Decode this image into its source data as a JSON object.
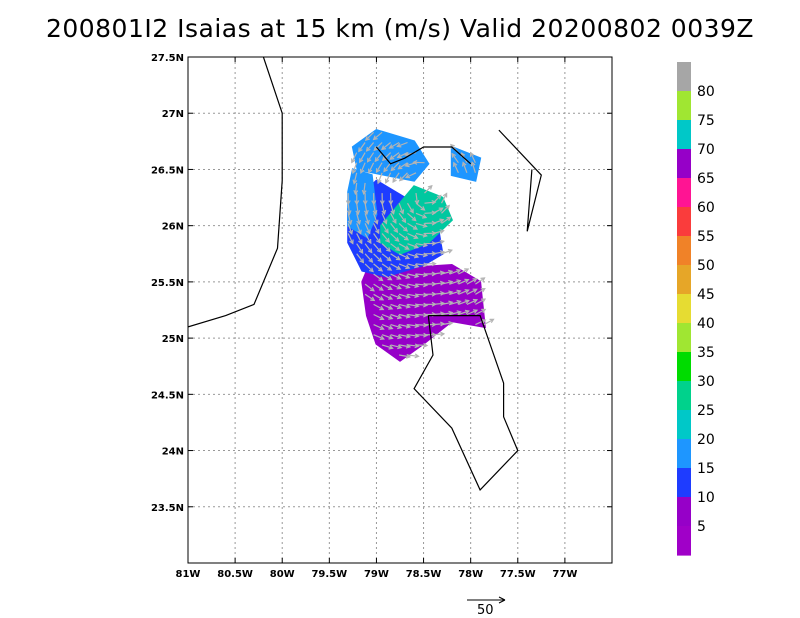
{
  "title": "200801I2 Isaias at 15 km (m/s) Valid 20200802 0039Z",
  "chart_data": {
    "type": "heatmap",
    "subtype": "doppler wind speed with wind vectors",
    "title": "200801I2 Isaias at 15 km (m/s) Valid 20200802 0039Z",
    "xlim": [
      -81.0,
      -76.5
    ],
    "ylim": [
      23.0,
      27.5
    ],
    "x_ticks": [
      -81.0,
      -80.5,
      -80.0,
      -79.5,
      -79.0,
      -78.5,
      -78.0,
      -77.5,
      -77.0
    ],
    "x_tick_labels": [
      "81W",
      "80.5W",
      "80W",
      "79.5W",
      "79W",
      "78.5W",
      "78W",
      "77.5W",
      "77W"
    ],
    "y_ticks": [
      27.5,
      27.0,
      26.5,
      26.0,
      25.5,
      25.0,
      24.5,
      24.0,
      23.5
    ],
    "y_tick_labels": [
      "27.5N",
      "27N",
      "26.5N",
      "26N",
      "25.5N",
      "25N",
      "24.5N",
      "24N",
      "23.5N"
    ],
    "grid": true,
    "colorbar": {
      "placement": "right",
      "labels": [
        "80",
        "75",
        "70",
        "65",
        "60",
        "55",
        "50",
        "45",
        "40",
        "35",
        "30",
        "25",
        "20",
        "15",
        "10",
        "5"
      ],
      "colors_top_to_bottom": [
        "#a6a6a6",
        "#a0e632",
        "#00c8c8",
        "#9600c8",
        "#ff1493",
        "#fa3c3c",
        "#f08228",
        "#e6a628",
        "#e6dc32",
        "#a0e632",
        "#00dc00",
        "#00d28c",
        "#00c8c8",
        "#1e96ff",
        "#1e3cff",
        "#9600c8",
        "#a000c8"
      ]
    },
    "reference_vector_label": "50",
    "regions": [
      {
        "name": "strong",
        "color": "#9600c8",
        "polygon": [
          [
            -79.1,
            25.6
          ],
          [
            -78.2,
            25.65
          ],
          [
            -77.9,
            25.5
          ],
          [
            -77.85,
            25.1
          ],
          [
            -78.2,
            25.15
          ],
          [
            -78.5,
            24.95
          ],
          [
            -78.75,
            24.8
          ],
          [
            -79.0,
            24.95
          ],
          [
            -79.1,
            25.2
          ],
          [
            -79.15,
            25.5
          ]
        ]
      },
      {
        "name": "mid",
        "color": "#1e3cff",
        "polygon": [
          [
            -79.3,
            26.15
          ],
          [
            -79.0,
            26.4
          ],
          [
            -78.6,
            26.2
          ],
          [
            -78.35,
            26.0
          ],
          [
            -78.3,
            25.75
          ],
          [
            -78.5,
            25.65
          ],
          [
            -78.9,
            25.55
          ],
          [
            -79.15,
            25.6
          ],
          [
            -79.3,
            25.85
          ]
        ]
      },
      {
        "name": "core",
        "color": "#00c8a0",
        "polygon": [
          [
            -78.95,
            26.0
          ],
          [
            -78.6,
            26.35
          ],
          [
            -78.3,
            26.25
          ],
          [
            -78.2,
            26.05
          ],
          [
            -78.45,
            25.85
          ],
          [
            -78.75,
            25.75
          ],
          [
            -78.95,
            25.85
          ]
        ]
      },
      {
        "name": "outer-north",
        "color": "#1e96ff",
        "polygon": [
          [
            -79.0,
            26.85
          ],
          [
            -78.6,
            26.75
          ],
          [
            -78.45,
            26.55
          ],
          [
            -78.6,
            26.4
          ],
          [
            -78.9,
            26.45
          ],
          [
            -79.2,
            26.5
          ],
          [
            -79.25,
            26.7
          ]
        ]
      },
      {
        "name": "outer-northeast",
        "color": "#1e96ff",
        "polygon": [
          [
            -78.2,
            26.7
          ],
          [
            -77.9,
            26.6
          ],
          [
            -77.95,
            26.4
          ],
          [
            -78.2,
            26.45
          ]
        ]
      },
      {
        "name": "outer-west",
        "color": "#1e96ff",
        "polygon": [
          [
            -79.25,
            26.5
          ],
          [
            -79.05,
            26.45
          ],
          [
            -79.0,
            26.1
          ],
          [
            -79.1,
            25.9
          ],
          [
            -79.3,
            26.0
          ],
          [
            -79.3,
            26.3
          ]
        ]
      }
    ],
    "coastlines": [
      [
        [
          -80.2,
          27.5
        ],
        [
          -80.0,
          27.0
        ],
        [
          -80.0,
          26.4
        ],
        [
          -80.05,
          25.8
        ],
        [
          -80.3,
          25.3
        ],
        [
          -80.6,
          25.2
        ],
        [
          -81.0,
          25.1
        ]
      ],
      [
        [
          -79.0,
          26.7
        ],
        [
          -78.85,
          26.55
        ],
        [
          -78.7,
          26.6
        ],
        [
          -78.5,
          26.7
        ],
        [
          -78.2,
          26.7
        ],
        [
          -78.0,
          26.55
        ]
      ],
      [
        [
          -77.7,
          26.85
        ],
        [
          -77.25,
          26.45
        ],
        [
          -77.4,
          25.95
        ],
        [
          -77.35,
          26.5
        ]
      ],
      [
        [
          -78.45,
          25.2
        ],
        [
          -78.4,
          24.85
        ],
        [
          -78.6,
          24.55
        ],
        [
          -78.2,
          24.2
        ],
        [
          -77.9,
          23.65
        ],
        [
          -77.5,
          24.0
        ],
        [
          -77.65,
          24.3
        ],
        [
          -77.65,
          24.6
        ],
        [
          -77.9,
          25.2
        ],
        [
          -78.45,
          25.2
        ]
      ]
    ]
  }
}
